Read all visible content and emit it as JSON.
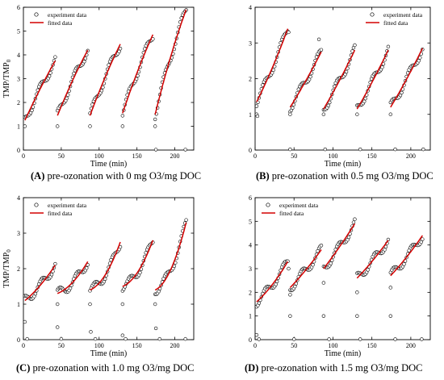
{
  "panels": [
    {
      "caption_letter": "(A)",
      "caption_text": " pre-ozonation with 0 mg O3/mg DOC",
      "chart_data": {
        "type": "scatter",
        "xlabel": "Time (min)",
        "ylabel": "TMP/TMP0",
        "xlim": [
          0,
          225
        ],
        "ylim": [
          0,
          6
        ],
        "xticks": [
          0,
          50,
          100,
          150,
          200
        ],
        "yticks": [
          0,
          1,
          2,
          3,
          4,
          5,
          6
        ],
        "legend": {
          "placement": "top-left",
          "entries": [
            "experiment data",
            "fitted data"
          ]
        },
        "segments": [
          {
            "start": 2,
            "end": 42,
            "y0": 1.25,
            "y1": 3.75,
            "curv": 0.1
          },
          {
            "start": 45,
            "end": 85,
            "y0": 1.45,
            "y1": 4.2,
            "curv": 0.15
          },
          {
            "start": 88,
            "end": 128,
            "y0": 1.45,
            "y1": 4.45,
            "curv": 0.15
          },
          {
            "start": 131,
            "end": 171,
            "y0": 1.55,
            "y1": 4.85,
            "curv": 0.15
          },
          {
            "start": 174,
            "end": 215,
            "y0": 1.5,
            "y1": 5.9,
            "curv": 0.2
          }
        ],
        "outliers": [
          [
            2,
            1
          ],
          [
            45,
            1
          ],
          [
            88,
            1
          ],
          [
            131,
            1
          ],
          [
            174,
            1
          ],
          [
            175,
            0.02
          ],
          [
            214,
            0.02
          ]
        ]
      }
    },
    {
      "caption_letter": "(B)",
      "caption_text": " pre-ozonation with 0.5 mg O3/mg DOC",
      "chart_data": {
        "type": "scatter",
        "xlabel": "Time (min)",
        "ylabel": "",
        "xlim": [
          0,
          225
        ],
        "ylim": [
          0,
          4
        ],
        "xticks": [
          0,
          50,
          100,
          150,
          200
        ],
        "yticks": [
          0,
          1,
          2,
          3,
          4
        ],
        "legend": {
          "placement": "top-right",
          "entries": [
            "experiment data",
            "fitted data"
          ]
        },
        "segments": [
          {
            "start": 2,
            "end": 42,
            "y0": 1.35,
            "y1": 3.4,
            "curv": -0.15
          },
          {
            "start": 45,
            "end": 85,
            "y0": 1.2,
            "y1": 2.75,
            "curv": -0.1
          },
          {
            "start": 88,
            "end": 128,
            "y0": 1.15,
            "y1": 2.8,
            "curv": -0.1
          },
          {
            "start": 131,
            "end": 171,
            "y0": 1.15,
            "y1": 2.8,
            "curv": -0.1
          },
          {
            "start": 174,
            "end": 215,
            "y0": 1.2,
            "y1": 2.85,
            "curv": -0.1
          }
        ],
        "outliers": [
          [
            2,
            1
          ],
          [
            3,
            0.95
          ],
          [
            45,
            1
          ],
          [
            88,
            1
          ],
          [
            131,
            1
          ],
          [
            174,
            1
          ],
          [
            43,
            3.3
          ],
          [
            82,
            3.1
          ],
          [
            45,
            0.02
          ],
          [
            90,
            0.02
          ],
          [
            135,
            0.02
          ],
          [
            180,
            0.02
          ],
          [
            216,
            0.02
          ]
        ]
      }
    },
    {
      "caption_letter": "(C)",
      "caption_text": " pre-ozonation with 1.0 mg O3/mg DOC",
      "chart_data": {
        "type": "scatter",
        "xlabel": "Time (min)",
        "ylabel": "TMP/TMP0",
        "xlim": [
          0,
          225
        ],
        "ylim": [
          0,
          4
        ],
        "xticks": [
          0,
          50,
          100,
          150,
          200
        ],
        "yticks": [
          0,
          1,
          2,
          3,
          4
        ],
        "legend": {
          "placement": "top-left",
          "entries": [
            "experiment data",
            "fitted data"
          ]
        },
        "segments": [
          {
            "start": 2,
            "end": 42,
            "y0": 1.1,
            "y1": 2.1,
            "curv": -0.3
          },
          {
            "start": 45,
            "end": 85,
            "y0": 1.3,
            "y1": 2.2,
            "curv": -0.6
          },
          {
            "start": 88,
            "end": 128,
            "y0": 1.4,
            "y1": 2.75,
            "curv": -0.75
          },
          {
            "start": 131,
            "end": 171,
            "y0": 1.5,
            "y1": 2.8,
            "curv": -0.75
          },
          {
            "start": 174,
            "end": 215,
            "y0": 1.4,
            "y1": 3.3,
            "curv": -0.8
          }
        ],
        "outliers": [
          [
            2,
            0.5
          ],
          [
            45,
            1
          ],
          [
            45,
            0.35
          ],
          [
            88,
            1
          ],
          [
            89,
            0.22
          ],
          [
            131,
            1
          ],
          [
            131,
            0.12
          ],
          [
            174,
            1
          ],
          [
            175,
            0.32
          ],
          [
            5,
            0.02
          ],
          [
            50,
            0.02
          ],
          [
            95,
            0.02
          ],
          [
            135,
            0.02
          ],
          [
            180,
            0.02
          ],
          [
            214,
            0.02
          ]
        ]
      }
    },
    {
      "caption_letter": "(D)",
      "caption_text": " pre-ozonation with 1.5 mg O3/mg DOC",
      "chart_data": {
        "type": "scatter",
        "xlabel": "Time (min)",
        "ylabel": "",
        "xlim": [
          0,
          225
        ],
        "ylim": [
          0,
          6
        ],
        "xticks": [
          0,
          50,
          100,
          150,
          200
        ],
        "yticks": [
          0,
          1,
          2,
          3,
          4,
          5,
          6
        ],
        "legend": {
          "placement": "top-left",
          "entries": [
            "experiment data",
            "fitted data"
          ]
        },
        "segments": [
          {
            "start": 2,
            "end": 42,
            "y0": 1.6,
            "y1": 3.3,
            "curv": -0.3
          },
          {
            "start": 45,
            "end": 85,
            "y0": 2.2,
            "y1": 3.8,
            "curv": -0.15
          },
          {
            "start": 88,
            "end": 128,
            "y0": 3.0,
            "y1": 4.9,
            "curv": -0.1
          },
          {
            "start": 131,
            "end": 171,
            "y0": 2.6,
            "y1": 4.2,
            "curv": -0.15
          },
          {
            "start": 174,
            "end": 215,
            "y0": 2.7,
            "y1": 4.4,
            "curv": -0.15
          }
        ],
        "outliers": [
          [
            2,
            0.2
          ],
          [
            45,
            1.9
          ],
          [
            45,
            1
          ],
          [
            88,
            2.4
          ],
          [
            88,
            1
          ],
          [
            131,
            2
          ],
          [
            131,
            1
          ],
          [
            174,
            2.2
          ],
          [
            174,
            1
          ],
          [
            43,
            3
          ],
          [
            5,
            0.02
          ],
          [
            50,
            0.02
          ],
          [
            95,
            0.02
          ],
          [
            135,
            0.02
          ],
          [
            180,
            0.02
          ],
          [
            214,
            0.02
          ]
        ]
      }
    }
  ]
}
